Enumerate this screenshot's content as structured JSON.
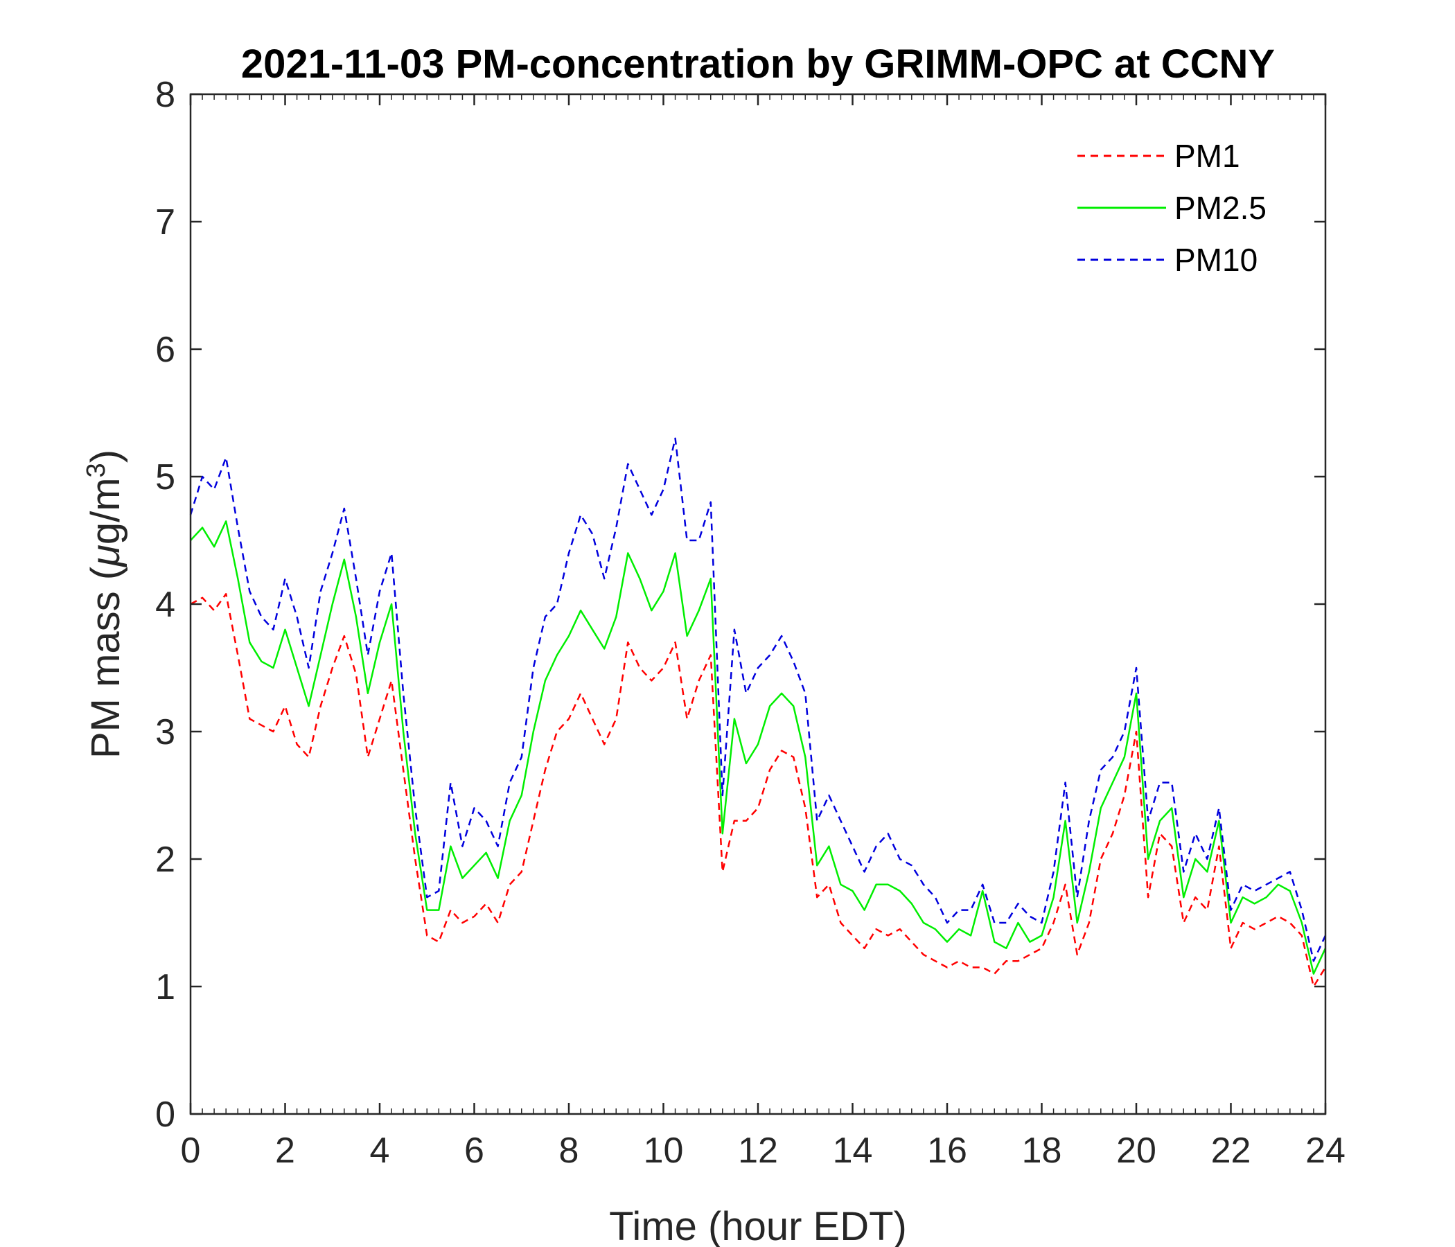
{
  "chart_data": {
    "type": "line",
    "title": "2021-11-03 PM-concentration by GRIMM-OPC at CCNY",
    "xlabel": "Time (hour EDT)",
    "ylabel_prefix": "PM mass (",
    "ylabel_unit_mu": "μ",
    "ylabel_unit_mid": "g/m",
    "ylabel_unit_sup": "3",
    "ylabel_suffix": ")",
    "xlim": [
      0,
      24
    ],
    "ylim": [
      0,
      8
    ],
    "x_ticks": [
      0,
      2,
      4,
      6,
      8,
      10,
      12,
      14,
      16,
      18,
      20,
      22,
      24
    ],
    "x_tick_labels": [
      "0",
      "2",
      "4",
      "6",
      "8",
      "10",
      "12",
      "14",
      "16",
      "18",
      "20",
      "22",
      "24"
    ],
    "y_ticks": [
      0,
      1,
      2,
      3,
      4,
      5,
      6,
      7,
      8
    ],
    "y_tick_labels": [
      "0",
      "1",
      "2",
      "3",
      "4",
      "5",
      "6",
      "7",
      "8"
    ],
    "grid": false,
    "legend_position": "top-right",
    "x": [
      0,
      0.25,
      0.5,
      0.75,
      1.0,
      1.25,
      1.5,
      1.75,
      2.0,
      2.25,
      2.5,
      2.75,
      3.0,
      3.25,
      3.5,
      3.75,
      4.0,
      4.25,
      4.5,
      4.75,
      5.0,
      5.25,
      5.5,
      5.75,
      6.0,
      6.25,
      6.5,
      6.75,
      7.0,
      7.25,
      7.5,
      7.75,
      8.0,
      8.25,
      8.5,
      8.75,
      9.0,
      9.25,
      9.5,
      9.75,
      10.0,
      10.25,
      10.5,
      10.75,
      11.0,
      11.25,
      11.5,
      11.75,
      12.0,
      12.25,
      12.5,
      12.75,
      13.0,
      13.25,
      13.5,
      13.75,
      14.0,
      14.25,
      14.5,
      14.75,
      15.0,
      15.25,
      15.5,
      15.75,
      16.0,
      16.25,
      16.5,
      16.75,
      17.0,
      17.25,
      17.5,
      17.75,
      18.0,
      18.25,
      18.5,
      18.75,
      19.0,
      19.25,
      19.5,
      19.75,
      20.0,
      20.25,
      20.5,
      20.75,
      21.0,
      21.25,
      21.5,
      21.75,
      22.0,
      22.25,
      22.5,
      22.75,
      23.0,
      23.25,
      23.5,
      23.75,
      24.0
    ],
    "series": [
      {
        "name": "PM1",
        "color": "#ff0000",
        "dash": true,
        "values": [
          4.0,
          4.05,
          3.95,
          4.08,
          3.6,
          3.1,
          3.05,
          3.0,
          3.2,
          2.9,
          2.8,
          3.2,
          3.5,
          3.75,
          3.45,
          2.8,
          3.1,
          3.4,
          2.7,
          2.0,
          1.4,
          1.35,
          1.6,
          1.5,
          1.55,
          1.65,
          1.5,
          1.8,
          1.9,
          2.3,
          2.7,
          3.0,
          3.1,
          3.3,
          3.1,
          2.9,
          3.1,
          3.7,
          3.5,
          3.4,
          3.5,
          3.7,
          3.1,
          3.4,
          3.6,
          1.9,
          2.3,
          2.3,
          2.4,
          2.7,
          2.85,
          2.8,
          2.4,
          1.7,
          1.8,
          1.5,
          1.4,
          1.3,
          1.45,
          1.4,
          1.45,
          1.35,
          1.25,
          1.2,
          1.15,
          1.2,
          1.15,
          1.15,
          1.1,
          1.2,
          1.2,
          1.25,
          1.3,
          1.5,
          1.8,
          1.25,
          1.5,
          2.0,
          2.2,
          2.5,
          3.0,
          1.7,
          2.2,
          2.1,
          1.5,
          1.7,
          1.6,
          2.1,
          1.3,
          1.5,
          1.45,
          1.5,
          1.55,
          1.5,
          1.4,
          1.0,
          1.15
        ]
      },
      {
        "name": "PM2.5",
        "color": "#00ee00",
        "dash": false,
        "values": [
          4.5,
          4.6,
          4.45,
          4.65,
          4.2,
          3.7,
          3.55,
          3.5,
          3.8,
          3.5,
          3.2,
          3.6,
          4.0,
          4.35,
          3.9,
          3.3,
          3.7,
          4.0,
          3.0,
          2.2,
          1.6,
          1.6,
          2.1,
          1.85,
          1.95,
          2.05,
          1.85,
          2.3,
          2.5,
          3.0,
          3.4,
          3.6,
          3.75,
          3.95,
          3.8,
          3.65,
          3.9,
          4.4,
          4.2,
          3.95,
          4.1,
          4.4,
          3.75,
          3.95,
          4.2,
          2.2,
          3.1,
          2.75,
          2.9,
          3.2,
          3.3,
          3.2,
          2.8,
          1.95,
          2.1,
          1.8,
          1.75,
          1.6,
          1.8,
          1.8,
          1.75,
          1.65,
          1.5,
          1.45,
          1.35,
          1.45,
          1.4,
          1.75,
          1.35,
          1.3,
          1.5,
          1.35,
          1.4,
          1.7,
          2.3,
          1.5,
          1.9,
          2.4,
          2.6,
          2.8,
          3.3,
          2.0,
          2.3,
          2.4,
          1.7,
          2.0,
          1.9,
          2.3,
          1.5,
          1.7,
          1.65,
          1.7,
          1.8,
          1.75,
          1.5,
          1.1,
          1.3
        ]
      },
      {
        "name": "PM10",
        "color": "#0000dd",
        "dash": true,
        "values": [
          4.7,
          5.0,
          4.9,
          5.15,
          4.6,
          4.1,
          3.9,
          3.8,
          4.2,
          3.9,
          3.5,
          4.1,
          4.4,
          4.75,
          4.2,
          3.6,
          4.1,
          4.4,
          3.3,
          2.4,
          1.7,
          1.75,
          2.6,
          2.1,
          2.4,
          2.3,
          2.1,
          2.6,
          2.8,
          3.5,
          3.9,
          4.0,
          4.4,
          4.7,
          4.55,
          4.2,
          4.6,
          5.1,
          4.9,
          4.7,
          4.9,
          5.3,
          4.5,
          4.5,
          4.8,
          2.5,
          3.8,
          3.3,
          3.5,
          3.6,
          3.75,
          3.55,
          3.3,
          2.3,
          2.5,
          2.3,
          2.1,
          1.9,
          2.1,
          2.2,
          2.0,
          1.95,
          1.8,
          1.7,
          1.5,
          1.6,
          1.6,
          1.8,
          1.5,
          1.5,
          1.65,
          1.55,
          1.5,
          1.9,
          2.6,
          1.7,
          2.3,
          2.7,
          2.8,
          3.0,
          3.5,
          2.3,
          2.6,
          2.6,
          1.9,
          2.2,
          2.0,
          2.4,
          1.6,
          1.8,
          1.75,
          1.8,
          1.85,
          1.9,
          1.6,
          1.2,
          1.4
        ]
      }
    ]
  }
}
